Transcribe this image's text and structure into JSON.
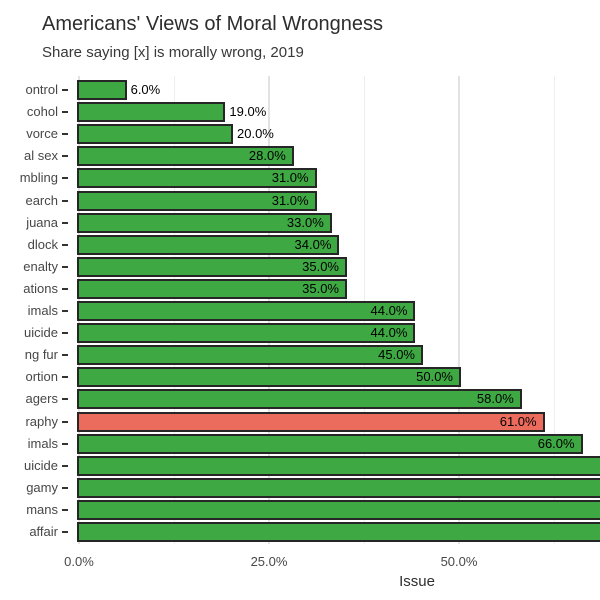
{
  "chart_data": {
    "type": "bar",
    "orientation": "horizontal",
    "title": "Americans' Views of Moral Wrongness",
    "subtitle": "Share saying [x] is morally wrong, 2019",
    "xlabel": "Issue",
    "ylabel": "",
    "x_axis_ticks": [
      {
        "label": "0.0%",
        "value": 0
      },
      {
        "label": "25.0%",
        "value": 25
      },
      {
        "label": "50.0%",
        "value": 50
      }
    ],
    "x_axis_minor_ticks": [
      12.5,
      37.5,
      62.5
    ],
    "xlim_visible": [
      0,
      68.5
    ],
    "grid": "vertical-only",
    "legend": "none",
    "bar_color": "#3EA843",
    "highlight_bar_color": "#EB6B5C",
    "bar_border_color": "#262626",
    "category_labels_clipped_at_left_edge": true,
    "bars": [
      {
        "label": "ontrol",
        "value": 6.0,
        "value_label": "6.0%",
        "highlight": false,
        "clipped": false
      },
      {
        "label": "cohol",
        "value": 19.0,
        "value_label": "19.0%",
        "highlight": false,
        "clipped": false
      },
      {
        "label": "vorce",
        "value": 20.0,
        "value_label": "20.0%",
        "highlight": false,
        "clipped": false
      },
      {
        "label": "al sex",
        "value": 28.0,
        "value_label": "28.0%",
        "highlight": false,
        "clipped": false
      },
      {
        "label": "mbling",
        "value": 31.0,
        "value_label": "31.0%",
        "highlight": false,
        "clipped": false
      },
      {
        "label": "earch",
        "value": 31.0,
        "value_label": "31.0%",
        "highlight": false,
        "clipped": false
      },
      {
        "label": "juana",
        "value": 33.0,
        "value_label": "33.0%",
        "highlight": false,
        "clipped": false
      },
      {
        "label": "dlock",
        "value": 34.0,
        "value_label": "34.0%",
        "highlight": false,
        "clipped": false
      },
      {
        "label": "enalty",
        "value": 35.0,
        "value_label": "35.0%",
        "highlight": false,
        "clipped": false
      },
      {
        "label": "ations",
        "value": 35.0,
        "value_label": "35.0%",
        "highlight": false,
        "clipped": false
      },
      {
        "label": "imals",
        "value": 44.0,
        "value_label": "44.0%",
        "highlight": false,
        "clipped": false
      },
      {
        "label": "uicide",
        "value": 44.0,
        "value_label": "44.0%",
        "highlight": false,
        "clipped": false
      },
      {
        "label": "ng fur",
        "value": 45.0,
        "value_label": "45.0%",
        "highlight": false,
        "clipped": false
      },
      {
        "label": "ortion",
        "value": 50.0,
        "value_label": "50.0%",
        "highlight": false,
        "clipped": false
      },
      {
        "label": "agers",
        "value": 58.0,
        "value_label": "58.0%",
        "highlight": false,
        "clipped": false
      },
      {
        "label": "raphy",
        "value": 61.0,
        "value_label": "61.0%",
        "highlight": true,
        "clipped": false
      },
      {
        "label": "imals",
        "value": 66.0,
        "value_label": "66.0%",
        "highlight": false,
        "clipped": false
      },
      {
        "label": "uicide",
        "value": null,
        "value_label": null,
        "highlight": false,
        "clipped": true
      },
      {
        "label": "gamy",
        "value": null,
        "value_label": null,
        "highlight": false,
        "clipped": true
      },
      {
        "label": "mans",
        "value": null,
        "value_label": null,
        "highlight": false,
        "clipped": true
      },
      {
        "label": "affair",
        "value": null,
        "value_label": null,
        "highlight": false,
        "clipped": true
      }
    ]
  }
}
